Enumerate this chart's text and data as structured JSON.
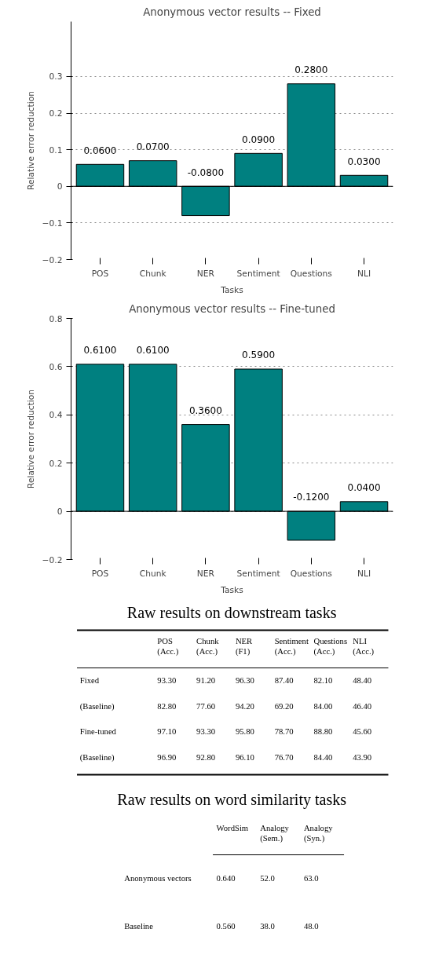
{
  "chart_data": [
    {
      "type": "bar",
      "title": "Anonymous vector results -- Fixed",
      "xlabel": "Tasks",
      "ylabel": "Relative error reduction",
      "categories": [
        "POS",
        "Chunk",
        "NER",
        "Sentiment",
        "Questions",
        "NLI"
      ],
      "values": [
        0.06,
        0.07,
        -0.08,
        0.09,
        0.28,
        0.03
      ],
      "value_labels": [
        "0.0600",
        "0.0700",
        "-0.0800",
        "0.0900",
        "0.2800",
        "0.0300"
      ],
      "color": "#008080",
      "ylim": [
        -0.2,
        0.45
      ],
      "yticks": [
        -0.2,
        -0.1,
        0.0,
        0.1,
        0.2,
        0.3
      ],
      "grid": "y",
      "ref_lines": [
        {
          "axis": "y",
          "value": 0,
          "color": "#000000",
          "line_style": "solid"
        }
      ]
    },
    {
      "type": "bar",
      "title": "Anonymous vector results -- Fine-tuned",
      "xlabel": "Tasks",
      "ylabel": "Relative error reduction",
      "categories": [
        "POS",
        "Chunk",
        "NER",
        "Sentiment",
        "Questions",
        "NLI"
      ],
      "values": [
        0.61,
        0.61,
        0.36,
        0.59,
        -0.12,
        0.04
      ],
      "value_labels": [
        "0.6100",
        "0.6100",
        "0.3600",
        "0.5900",
        "-0.1200",
        "0.0400"
      ],
      "color": "#008080",
      "ylim": [
        -0.2,
        0.8
      ],
      "yticks": [
        -0.2,
        0.0,
        0.2,
        0.4,
        0.6,
        0.8
      ],
      "grid": "y",
      "ref_lines": [
        {
          "axis": "y",
          "value": 0,
          "color": "#000000",
          "line_style": "solid"
        }
      ]
    },
    {
      "type": "heatmap",
      "title": "Raw results on downstream tasks",
      "categories": [
        "POS (Acc.)",
        "Chunk (Acc.)",
        "NER (F1)",
        "Sentiment (Acc.)",
        "Questions (Acc.)",
        "NLI (Acc.)"
      ],
      "y_categories": [
        "Fixed",
        "(Baseline)",
        "Fine-tuned",
        "(Baseline)"
      ],
      "cells": [
        [
          93.3,
          91.2,
          96.3,
          87.4,
          82.1,
          48.4
        ],
        [
          82.8,
          77.6,
          94.2,
          69.2,
          84.0,
          46.4
        ],
        [
          97.1,
          93.3,
          95.8,
          78.7,
          88.8,
          45.6
        ],
        [
          96.9,
          92.8,
          96.1,
          76.7,
          84.4,
          43.9
        ]
      ],
      "cell_labels": [
        [
          "93.30",
          "91.20",
          "96.30",
          "87.40",
          "82.10",
          "48.40"
        ],
        [
          "82.80",
          "77.60",
          "94.20",
          "69.20",
          "84.00",
          "46.40"
        ],
        [
          "97.10",
          "93.30",
          "95.80",
          "78.70",
          "88.80",
          "45.60"
        ],
        [
          "96.90",
          "92.80",
          "96.10",
          "76.70",
          "84.40",
          "43.90"
        ]
      ]
    },
    {
      "type": "heatmap",
      "title": "Raw results on word similarity tasks",
      "categories": [
        "WordSim",
        "Analogy (Sem.)",
        "Analogy (Syn.)"
      ],
      "y_categories": [
        "Anonymous vectors",
        "Baseline"
      ],
      "cells": [
        [
          0.64,
          52.0,
          63.0
        ],
        [
          0.56,
          38.0,
          48.0
        ]
      ],
      "cell_labels": [
        [
          "0.640",
          "52.0",
          "63.0"
        ],
        [
          "0.560",
          "38.0",
          "48.0"
        ]
      ]
    }
  ]
}
